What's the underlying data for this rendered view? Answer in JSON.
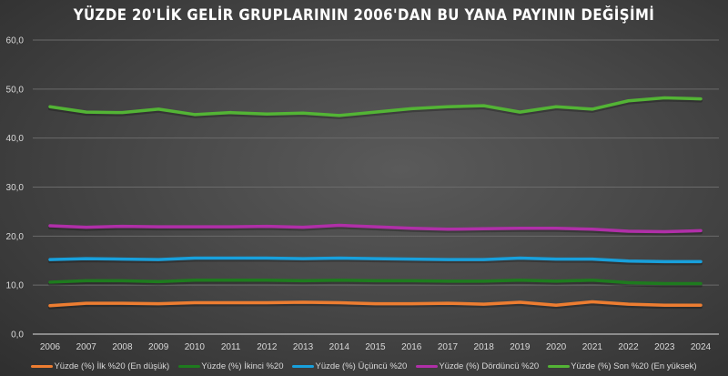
{
  "chart_data": {
    "type": "line",
    "title": "YÜZDE 20'LİK GELİR GRUPLARININ 2006'DAN BU YANA PAYININ DEĞİŞİMİ",
    "xlabel": "",
    "ylabel": "",
    "ylim": [
      0,
      60
    ],
    "yticks": [
      "0,0",
      "10,0",
      "20,0",
      "30,0",
      "40,0",
      "50,0",
      "60,0"
    ],
    "grid": true,
    "legend_position": "bottom",
    "categories": [
      "2006",
      "2007",
      "2008",
      "2009",
      "2010",
      "2011",
      "2012",
      "2013",
      "2014",
      "2015",
      "2016",
      "2017",
      "2018",
      "2019",
      "2020",
      "2021",
      "2022",
      "2023",
      "2024"
    ],
    "series": [
      {
        "name": "Yüzde (%) İlk %20 (En düşük)",
        "color": "#ed7d31",
        "values": [
          5.8,
          6.3,
          6.3,
          6.2,
          6.4,
          6.4,
          6.4,
          6.5,
          6.4,
          6.2,
          6.2,
          6.3,
          6.1,
          6.5,
          5.9,
          6.6,
          6.1,
          5.9,
          5.9
        ]
      },
      {
        "name": "Yüzde (%) İkinci %20",
        "color": "#1e7b1e",
        "values": [
          10.6,
          10.9,
          10.9,
          10.7,
          11.0,
          11.0,
          11.0,
          10.9,
          11.0,
          10.9,
          10.9,
          10.8,
          10.8,
          11.0,
          10.8,
          11.0,
          10.5,
          10.3,
          10.3
        ]
      },
      {
        "name": "Yüzde (%) Üçüncü %20",
        "color": "#18a0dc",
        "values": [
          15.2,
          15.4,
          15.3,
          15.2,
          15.5,
          15.5,
          15.5,
          15.4,
          15.5,
          15.4,
          15.3,
          15.2,
          15.2,
          15.5,
          15.3,
          15.3,
          14.9,
          14.8,
          14.8
        ]
      },
      {
        "name": "Yüzde (%) Dördüncü %20",
        "color": "#b02fa8",
        "values": [
          22.1,
          21.8,
          22.0,
          21.9,
          21.9,
          21.9,
          22.0,
          21.8,
          22.2,
          21.9,
          21.6,
          21.4,
          21.5,
          21.6,
          21.6,
          21.4,
          21.0,
          20.9,
          21.1
        ]
      },
      {
        "name": "Yüzde (%) Son %20 (En yüksek)",
        "color": "#53b435",
        "values": [
          46.4,
          45.3,
          45.2,
          45.9,
          44.8,
          45.2,
          44.9,
          45.1,
          44.6,
          45.3,
          46.0,
          46.4,
          46.6,
          45.3,
          46.4,
          45.9,
          47.6,
          48.2,
          48.0
        ]
      }
    ]
  },
  "legend": [
    {
      "label": "Yüzde (%) İlk %20 (En düşük)",
      "color": "#ed7d31"
    },
    {
      "label": "Yüzde (%) İkinci %20",
      "color": "#1e7b1e"
    },
    {
      "label": "Yüzde (%) Üçüncü %20",
      "color": "#18a0dc"
    },
    {
      "label": "Yüzde (%) Dördüncü %20",
      "color": "#b02fa8"
    },
    {
      "label": "Yüzde (%) Son %20 (En yüksek)",
      "color": "#53b435"
    }
  ]
}
